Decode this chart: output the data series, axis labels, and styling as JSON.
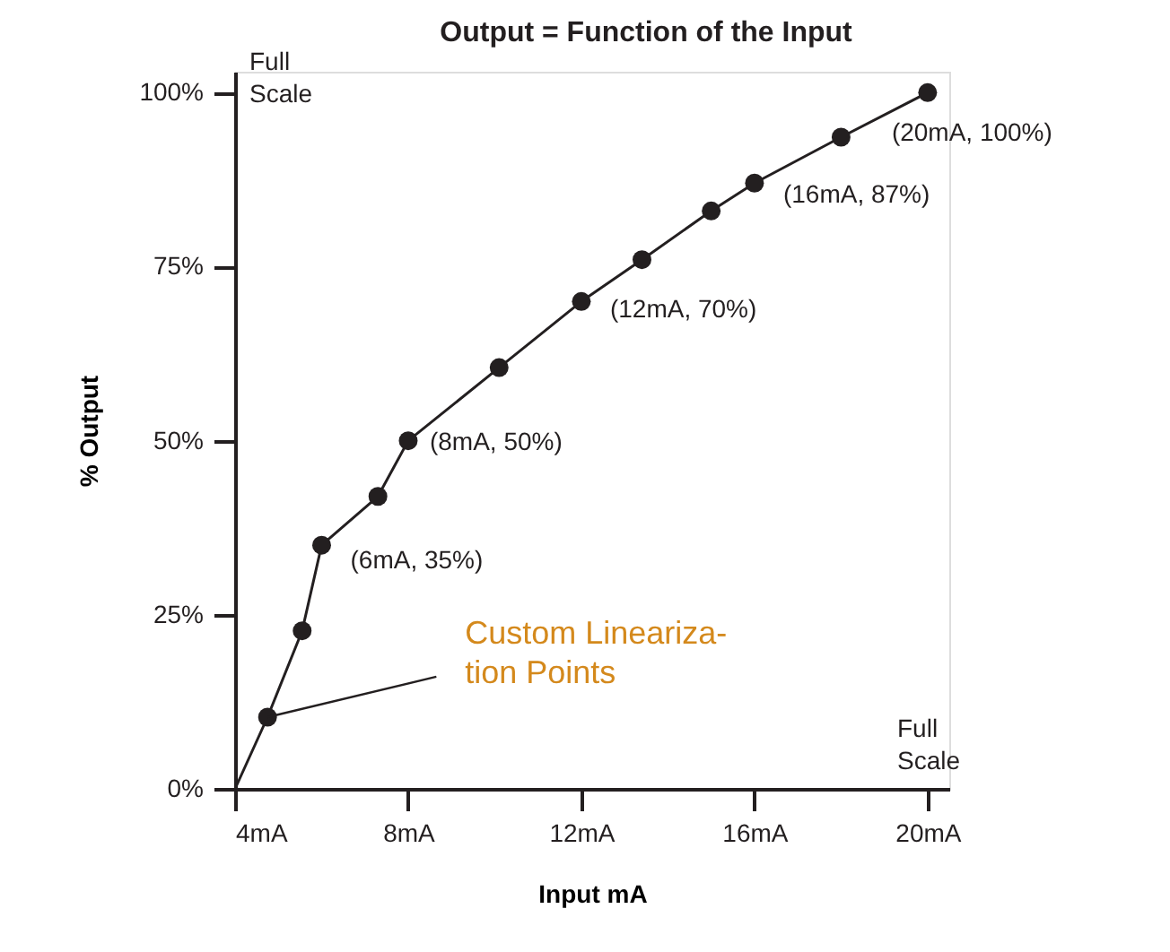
{
  "chart_data": {
    "type": "line",
    "title": "Output   =   Function of the Input",
    "xlabel": "Input mA",
    "ylabel": "% Output",
    "xlim": [
      4,
      20.5
    ],
    "ylim": [
      0,
      103
    ],
    "xticks": [
      {
        "value": 4,
        "label": "4mA"
      },
      {
        "value": 8,
        "label": "8mA"
      },
      {
        "value": 12,
        "label": "12mA"
      },
      {
        "value": 16,
        "label": "16mA"
      },
      {
        "value": 20,
        "label": "20mA"
      }
    ],
    "yticks": [
      {
        "value": 0,
        "label": "0%"
      },
      {
        "value": 25,
        "label": "25%"
      },
      {
        "value": 50,
        "label": "50%"
      },
      {
        "value": 75,
        "label": "75%"
      },
      {
        "value": 100,
        "label": "100%"
      }
    ],
    "grid": false,
    "legend": false,
    "series": [
      {
        "marker": "none",
        "line_style": "solid",
        "color": "#231f20",
        "x": [
          4,
          4.75,
          5.55,
          6,
          7.3,
          8,
          10.1,
          12,
          13.4,
          15,
          16,
          18,
          20
        ],
        "values": [
          0,
          10.3,
          22.7,
          35,
          42,
          50,
          60.5,
          70,
          76,
          83,
          87,
          93.6,
          100
        ]
      },
      {
        "type": "scatter",
        "marker": "circle",
        "color": "#231f20",
        "x": [
          4.75,
          5.55,
          6,
          7.3,
          8,
          10.1,
          12,
          13.4,
          15,
          16,
          18,
          20
        ],
        "values": [
          10.3,
          22.7,
          35,
          42,
          50,
          60.5,
          70,
          76,
          83,
          87,
          93.6,
          100
        ]
      }
    ],
    "annotations": [
      {
        "text": "(6mA, 35%)",
        "x": 6,
        "y": 35
      },
      {
        "text": "(8mA, 50%)",
        "x": 8,
        "y": 50
      },
      {
        "text": "(12mA, 70%)",
        "x": 12,
        "y": 70
      },
      {
        "text": "(16mA, 87%)",
        "x": 16,
        "y": 87
      },
      {
        "text": "(20mA, 100%)",
        "x": 20,
        "y": 100
      },
      "Full\nScale",
      "Full\nScale",
      {
        "text": "Custom Lineariza-\ntion Points",
        "x": 4.75,
        "y": 10.3
      }
    ]
  }
}
